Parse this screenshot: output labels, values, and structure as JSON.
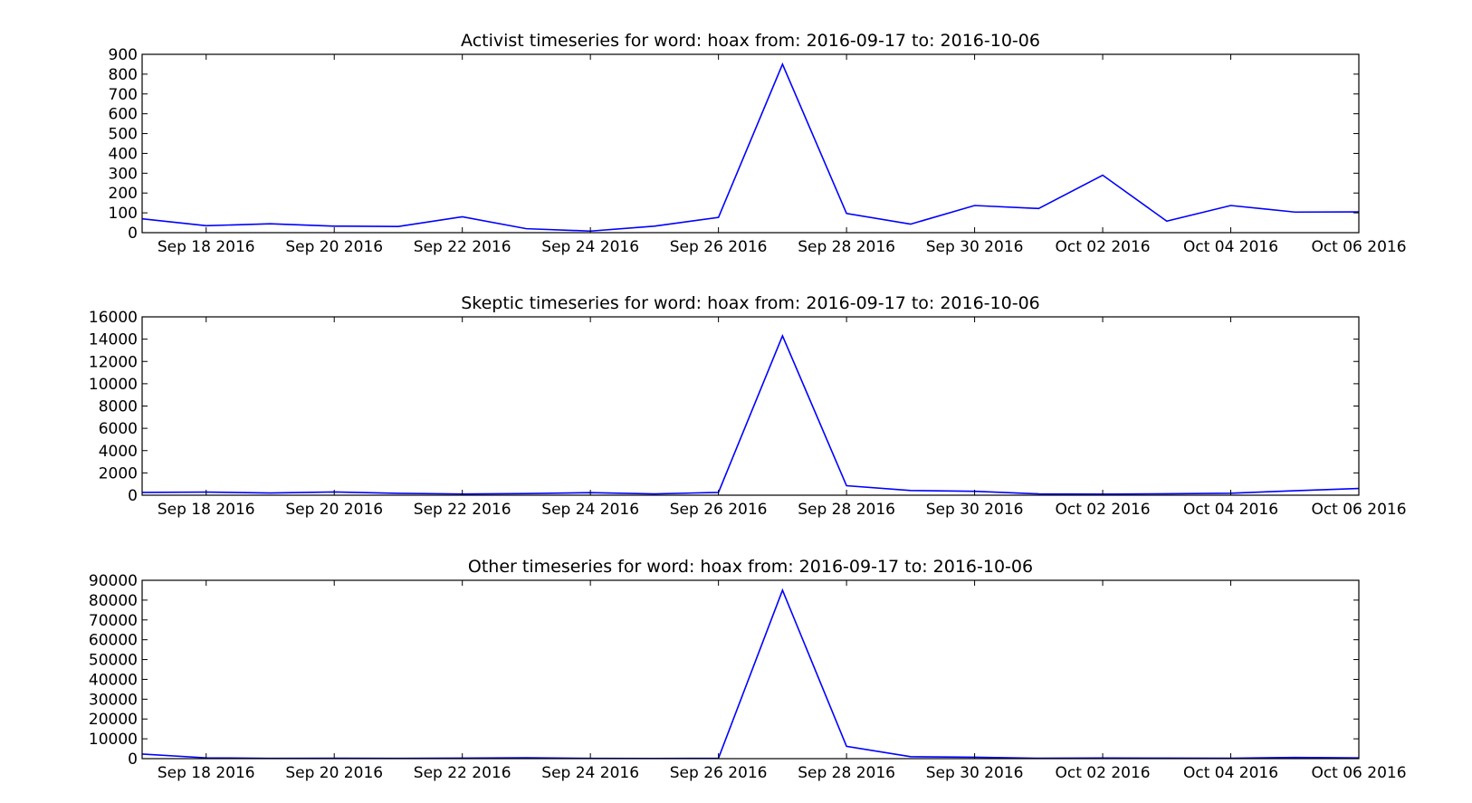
{
  "chart_data": [
    {
      "type": "line",
      "title": "Activist timeseries for word: hoax from: 2016-09-17 to: 2016-10-06",
      "xlabel": "",
      "ylabel": "",
      "x": [
        "2016-09-17",
        "2016-09-18",
        "2016-09-19",
        "2016-09-20",
        "2016-09-21",
        "2016-09-22",
        "2016-09-23",
        "2016-09-24",
        "2016-09-25",
        "2016-09-26",
        "2016-09-27",
        "2016-09-28",
        "2016-09-29",
        "2016-09-30",
        "2016-10-01",
        "2016-10-02",
        "2016-10-03",
        "2016-10-04",
        "2016-10-05",
        "2016-10-06"
      ],
      "xlim": [
        "2016-09-17",
        "2016-10-06"
      ],
      "xticks": [
        "Sep 18 2016",
        "Sep 20 2016",
        "Sep 22 2016",
        "Sep 24 2016",
        "Sep 26 2016",
        "Sep 28 2016",
        "Sep 30 2016",
        "Oct 02 2016",
        "Oct 04 2016",
        "Oct 06 2016"
      ],
      "ylim": [
        0,
        900
      ],
      "yticks": [
        0,
        100,
        200,
        300,
        400,
        500,
        600,
        700,
        800,
        900
      ],
      "series": [
        {
          "values": [
            70,
            35,
            45,
            33,
            31,
            80,
            20,
            8,
            33,
            77,
            850,
            97,
            43,
            137,
            122,
            290,
            58,
            137,
            104,
            105
          ]
        }
      ],
      "color": "#0000ff",
      "grid": false
    },
    {
      "type": "line",
      "title": "Skeptic timeseries for word: hoax from: 2016-09-17 to: 2016-10-06",
      "xlabel": "",
      "ylabel": "",
      "x": [
        "2016-09-17",
        "2016-09-18",
        "2016-09-19",
        "2016-09-20",
        "2016-09-21",
        "2016-09-22",
        "2016-09-23",
        "2016-09-24",
        "2016-09-25",
        "2016-09-26",
        "2016-09-27",
        "2016-09-28",
        "2016-09-29",
        "2016-09-30",
        "2016-10-01",
        "2016-10-02",
        "2016-10-03",
        "2016-10-04",
        "2016-10-05",
        "2016-10-06"
      ],
      "xlim": [
        "2016-09-17",
        "2016-10-06"
      ],
      "xticks": [
        "Sep 18 2016",
        "Sep 20 2016",
        "Sep 22 2016",
        "Sep 24 2016",
        "Sep 26 2016",
        "Sep 28 2016",
        "Sep 30 2016",
        "Oct 02 2016",
        "Oct 04 2016",
        "Oct 06 2016"
      ],
      "ylim": [
        0,
        16000
      ],
      "yticks": [
        0,
        2000,
        4000,
        6000,
        8000,
        10000,
        12000,
        14000,
        16000
      ],
      "series": [
        {
          "values": [
            250,
            280,
            200,
            290,
            170,
            110,
            150,
            230,
            120,
            250,
            14300,
            850,
            420,
            350,
            120,
            100,
            130,
            180,
            400,
            600
          ]
        }
      ],
      "color": "#0000ff",
      "grid": false
    },
    {
      "type": "line",
      "title": "Other timeseries for word: hoax from: 2016-09-17 to: 2016-10-06",
      "xlabel": "",
      "ylabel": "",
      "x": [
        "2016-09-17",
        "2016-09-18",
        "2016-09-19",
        "2016-09-20",
        "2016-09-21",
        "2016-09-22",
        "2016-09-23",
        "2016-09-24",
        "2016-09-25",
        "2016-09-26",
        "2016-09-27",
        "2016-09-28",
        "2016-09-29",
        "2016-09-30",
        "2016-10-01",
        "2016-10-02",
        "2016-10-03",
        "2016-10-04",
        "2016-10-05",
        "2016-10-06"
      ],
      "xlim": [
        "2016-09-17",
        "2016-10-06"
      ],
      "xticks": [
        "Sep 18 2016",
        "Sep 20 2016",
        "Sep 22 2016",
        "Sep 24 2016",
        "Sep 26 2016",
        "Sep 28 2016",
        "Sep 30 2016",
        "Oct 02 2016",
        "Oct 04 2016",
        "Oct 06 2016"
      ],
      "ylim": [
        0,
        90000
      ],
      "yticks": [
        0,
        10000,
        20000,
        30000,
        40000,
        50000,
        60000,
        70000,
        80000,
        90000
      ],
      "series": [
        {
          "values": [
            2300,
            400,
            150,
            200,
            150,
            250,
            450,
            150,
            100,
            200,
            85000,
            6200,
            1000,
            700,
            200,
            300,
            250,
            200,
            600,
            400
          ]
        }
      ],
      "color": "#0000ff",
      "grid": false
    }
  ]
}
